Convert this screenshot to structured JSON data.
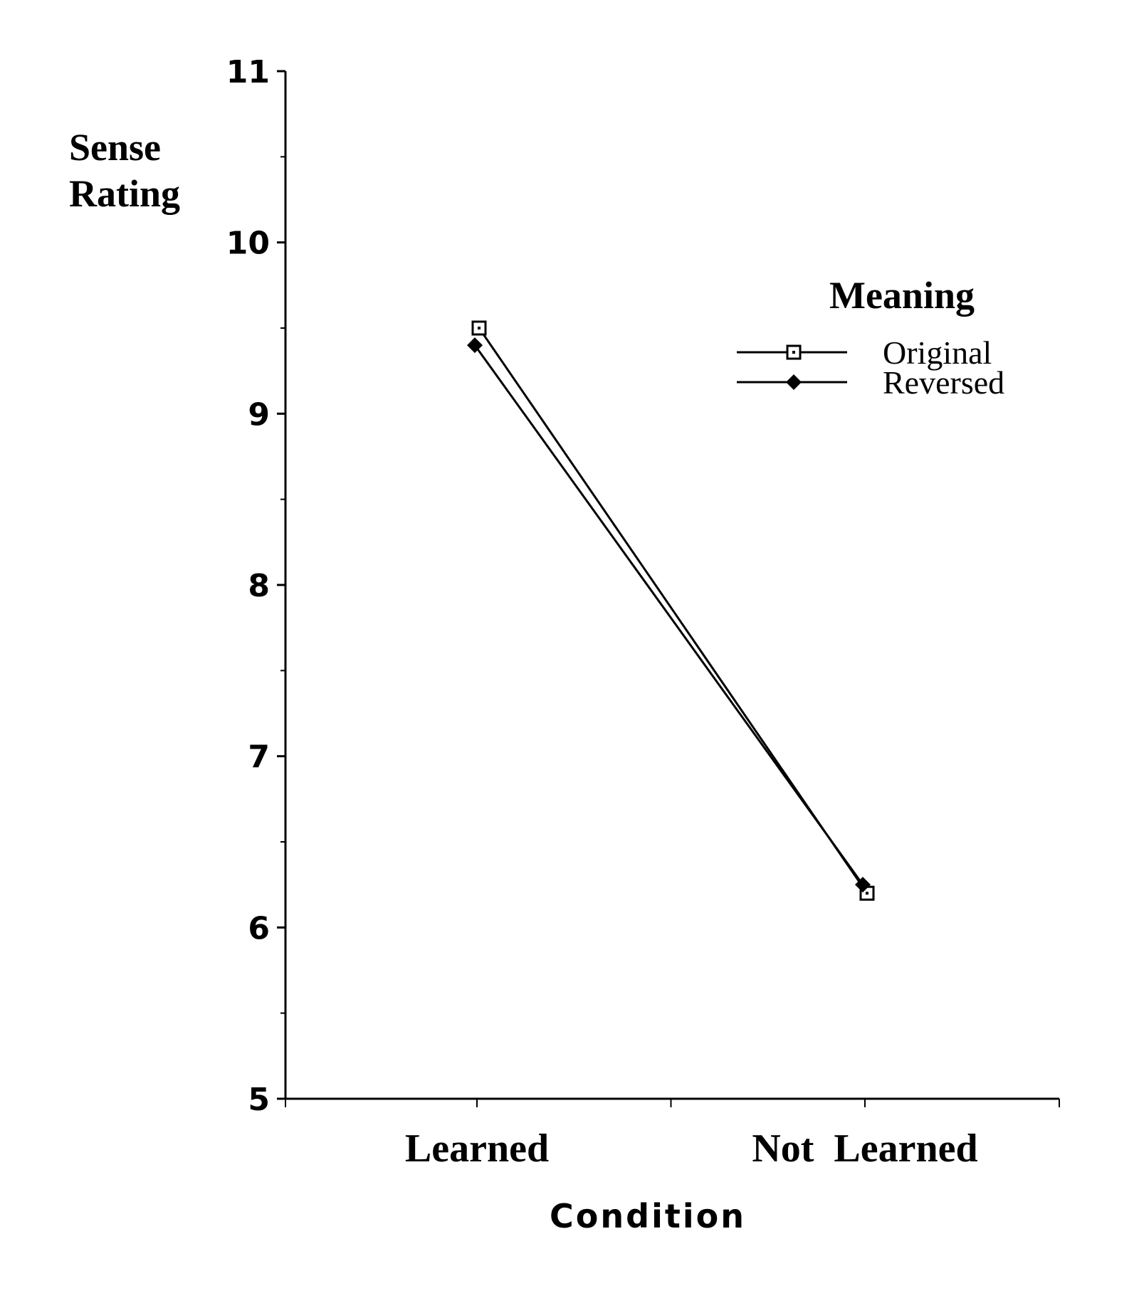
{
  "chart_data": {
    "type": "line",
    "categories": [
      "Learned",
      "Not  Learned"
    ],
    "series": [
      {
        "name": "Original",
        "values": [
          9.5,
          6.2
        ],
        "marker": "open-square"
      },
      {
        "name": "Reversed",
        "values": [
          9.4,
          6.25
        ],
        "marker": "filled-diamond"
      }
    ],
    "ylabel_lines": [
      "Sense",
      "Rating"
    ],
    "xlabel": "Condition",
    "ylim": [
      5,
      11
    ],
    "yticks": [
      5,
      6,
      7,
      8,
      9,
      10,
      11
    ],
    "legend_title": "Meaning",
    "legend_placement": "upper-right",
    "grid": false,
    "line_color": "#000000"
  }
}
